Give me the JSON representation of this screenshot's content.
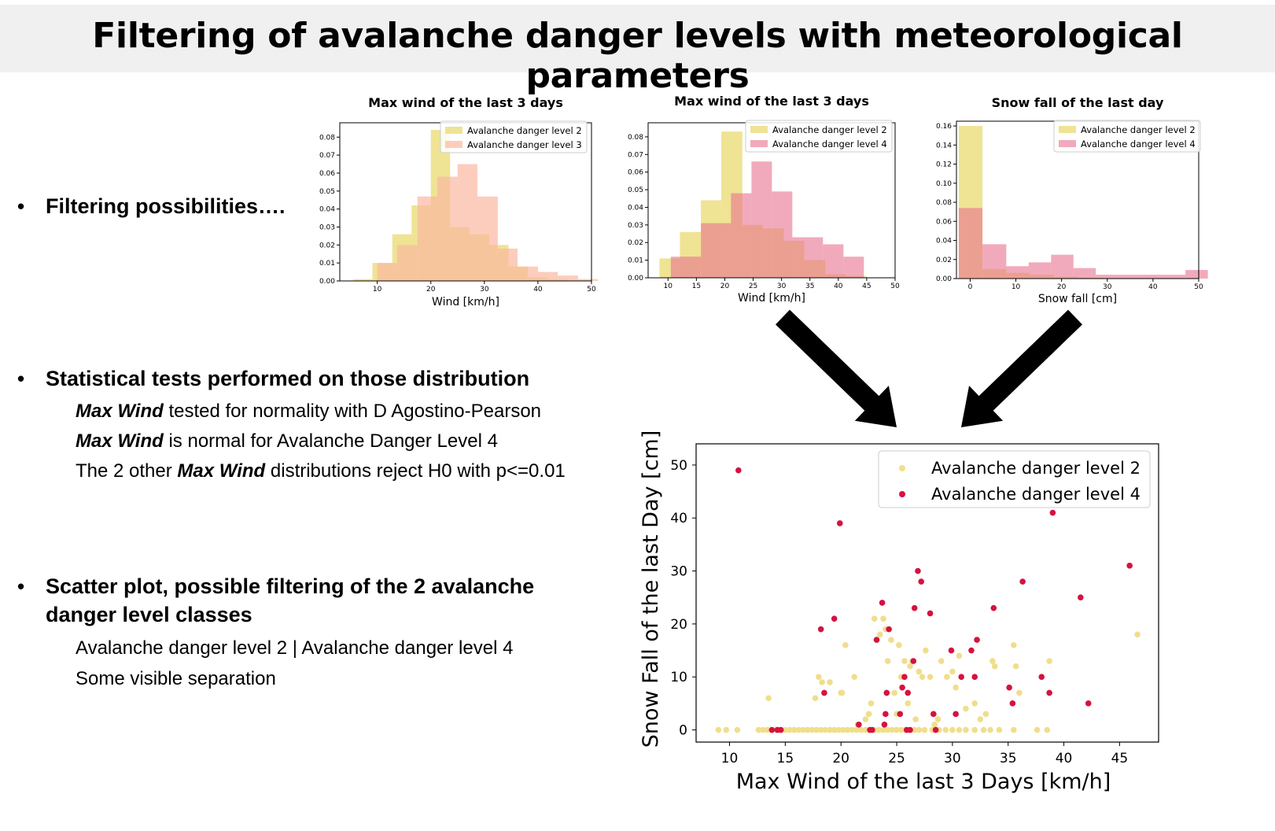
{
  "title": "Filtering of avalanche danger levels with meteorological parameters",
  "bullets": [
    {
      "text": "Filtering possibilities…."
    },
    {
      "text": "Statistical tests performed on those distribution"
    },
    {
      "text": "Scatter plot, possible filtering of the 2 avalanche",
      "text2": "danger level classes"
    }
  ],
  "notes": {
    "line1_bold": "Max Wind",
    "line1_rest": " tested for normality with D Agostino-Pearson",
    "line2_bold": "Max Wind",
    "line2_rest": " is normal for Avalanche Danger Level 4",
    "line3_pre": "The 2 other ",
    "line3_bold": "Max Wind",
    "line3_rest": " distributions reject H0 with p<=0.01",
    "line4": "Avalanche danger level 2  | Avalanche danger level 4",
    "line5": "Some visible separation"
  },
  "colors": {
    "level2": "#e8d766",
    "level3": "#fbb8a0",
    "level4": "#e8718d",
    "scatter_level2": "#f0de8c",
    "scatter_level4": "#d6123f",
    "arrow": "#000000"
  },
  "chart_data": [
    {
      "type": "histogram",
      "title": "Max wind of the last 3 days",
      "xlabel": "Wind [km/h]",
      "xlim": [
        3,
        50
      ],
      "ylim": [
        0,
        0.088
      ],
      "xticks": [
        10,
        20,
        30,
        40,
        50
      ],
      "yticks": [
        0.0,
        0.01,
        0.02,
        0.03,
        0.04,
        0.05,
        0.06,
        0.07,
        0.08
      ],
      "legend_position": "top-right",
      "series": [
        {
          "name": "Avalanche danger level 2",
          "bins": [
            [
              5.5,
              9.1,
              0.001
            ],
            [
              9.1,
              12.8,
              0.01
            ],
            [
              12.8,
              16.4,
              0.026
            ],
            [
              16.4,
              20.0,
              0.042
            ],
            [
              20.0,
              23.6,
              0.084
            ],
            [
              23.6,
              27.2,
              0.03
            ],
            [
              27.2,
              30.9,
              0.026
            ],
            [
              30.9,
              34.5,
              0.02
            ],
            [
              34.5,
              38.1,
              0.008
            ],
            [
              38.1,
              41.8,
              0.002
            ],
            [
              41.8,
              45.4,
              0.001
            ]
          ]
        },
        {
          "name": "Avalanche danger level 3",
          "bins": [
            [
              10.0,
              13.7,
              0.01
            ],
            [
              13.7,
              17.5,
              0.02
            ],
            [
              17.5,
              21.2,
              0.047
            ],
            [
              21.2,
              25.0,
              0.058
            ],
            [
              25.0,
              28.7,
              0.065
            ],
            [
              28.7,
              32.5,
              0.047
            ],
            [
              32.5,
              36.2,
              0.018
            ],
            [
              36.2,
              40.0,
              0.008
            ],
            [
              40.0,
              43.7,
              0.005
            ],
            [
              43.7,
              47.5,
              0.003
            ],
            [
              47.5,
              51.2,
              0.001
            ]
          ]
        }
      ]
    },
    {
      "type": "histogram",
      "title": "Max wind of the last 3 days",
      "xlabel": "Wind [km/h]",
      "xlim": [
        6.5,
        50
      ],
      "ylim": [
        0,
        0.088
      ],
      "xticks": [
        10,
        15,
        20,
        25,
        30,
        35,
        40,
        45,
        50
      ],
      "yticks": [
        0.0,
        0.01,
        0.02,
        0.03,
        0.04,
        0.05,
        0.06,
        0.07,
        0.08
      ],
      "legend_position": "top-right",
      "series": [
        {
          "name": "Avalanche danger level 2",
          "bins": [
            [
              8.5,
              12.1,
              0.011
            ],
            [
              12.1,
              15.8,
              0.026
            ],
            [
              15.8,
              19.4,
              0.044
            ],
            [
              19.4,
              23.1,
              0.083
            ],
            [
              23.1,
              26.7,
              0.03
            ],
            [
              26.7,
              30.4,
              0.028
            ],
            [
              30.4,
              34.0,
              0.021
            ],
            [
              34.0,
              37.7,
              0.01
            ],
            [
              37.7,
              41.3,
              0.002
            ],
            [
              41.3,
              45.0,
              0.001
            ]
          ]
        },
        {
          "name": "Avalanche danger level 4",
          "bins": [
            [
              10.5,
              15.8,
              0.012
            ],
            [
              15.8,
              21.1,
              0.031
            ],
            [
              21.1,
              24.7,
              0.048
            ],
            [
              24.7,
              28.3,
              0.066
            ],
            [
              28.3,
              31.9,
              0.049
            ],
            [
              31.9,
              37.3,
              0.023
            ],
            [
              37.3,
              40.9,
              0.019
            ],
            [
              40.9,
              44.5,
              0.012
            ]
          ]
        }
      ]
    },
    {
      "type": "histogram",
      "title": "Snow fall of the last day",
      "xlabel": "Snow fall [cm]",
      "xlim": [
        -3,
        50
      ],
      "ylim": [
        0,
        0.165
      ],
      "xticks": [
        0,
        10,
        20,
        30,
        40,
        50
      ],
      "yticks": [
        0.0,
        0.02,
        0.04,
        0.06,
        0.08,
        0.1,
        0.12,
        0.14,
        0.16
      ],
      "legend_position": "top-right",
      "series": [
        {
          "name": "Avalanche danger level 2",
          "bins": [
            [
              -2.5,
              2.7,
              0.16
            ],
            [
              2.7,
              7.9,
              0.01
            ],
            [
              7.9,
              13.1,
              0.006
            ],
            [
              13.1,
              18.3,
              0.004
            ],
            [
              18.3,
              23.5,
              0.002
            ],
            [
              23.5,
              28.7,
              0.001
            ]
          ]
        },
        {
          "name": "Avalanche danger level 4",
          "bins": [
            [
              -2.5,
              2.7,
              0.074
            ],
            [
              2.7,
              7.9,
              0.036
            ],
            [
              7.9,
              12.8,
              0.013
            ],
            [
              12.8,
              17.7,
              0.017
            ],
            [
              17.7,
              22.6,
              0.025
            ],
            [
              22.6,
              27.5,
              0.011
            ],
            [
              27.5,
              32.4,
              0.004
            ],
            [
              32.4,
              37.3,
              0.004
            ],
            [
              37.3,
              42.2,
              0.004
            ],
            [
              42.2,
              47.1,
              0.004
            ],
            [
              47.1,
              52.0,
              0.009
            ]
          ]
        }
      ]
    },
    {
      "type": "scatter",
      "xlabel": "Max Wind of the last 3 Days [km/h]",
      "ylabel": "Snow Fall of the last Day [cm]",
      "xlim": [
        7,
        48.5
      ],
      "ylim": [
        -2.3,
        54
      ],
      "xticks": [
        10,
        15,
        20,
        25,
        30,
        35,
        40,
        45
      ],
      "yticks": [
        0,
        10,
        20,
        30,
        40,
        50
      ],
      "legend_position": "top-right",
      "series": [
        {
          "name": "Avalanche danger level 2",
          "points": [
            [
              9.0,
              0
            ],
            [
              9.7,
              0
            ],
            [
              10.7,
              0
            ],
            [
              12.6,
              0
            ],
            [
              13.0,
              0
            ],
            [
              13.4,
              0
            ],
            [
              13.8,
              0
            ],
            [
              14.2,
              0
            ],
            [
              14.6,
              0
            ],
            [
              15.0,
              0
            ],
            [
              15.4,
              0
            ],
            [
              15.8,
              0
            ],
            [
              16.2,
              0
            ],
            [
              16.6,
              0
            ],
            [
              17.0,
              0
            ],
            [
              17.4,
              0
            ],
            [
              17.8,
              0
            ],
            [
              18.2,
              0
            ],
            [
              18.6,
              0
            ],
            [
              19.0,
              0
            ],
            [
              19.4,
              0
            ],
            [
              19.8,
              0
            ],
            [
              20.2,
              0
            ],
            [
              20.6,
              0
            ],
            [
              21.0,
              0
            ],
            [
              21.4,
              0
            ],
            [
              21.8,
              0
            ],
            [
              22.2,
              0
            ],
            [
              22.6,
              0
            ],
            [
              23.0,
              0
            ],
            [
              23.4,
              0
            ],
            [
              23.8,
              0
            ],
            [
              24.2,
              0
            ],
            [
              24.6,
              0
            ],
            [
              25.0,
              0
            ],
            [
              25.4,
              0
            ],
            [
              25.8,
              0
            ],
            [
              26.2,
              0
            ],
            [
              26.6,
              0
            ],
            [
              27.0,
              0
            ],
            [
              27.5,
              0
            ],
            [
              28.2,
              0
            ],
            [
              28.8,
              0
            ],
            [
              29.4,
              0
            ],
            [
              30.0,
              0
            ],
            [
              30.6,
              0
            ],
            [
              31.2,
              0
            ],
            [
              32.0,
              0
            ],
            [
              32.8,
              0
            ],
            [
              33.4,
              0
            ],
            [
              34.2,
              0
            ],
            [
              35.5,
              0
            ],
            [
              37.6,
              0
            ],
            [
              38.5,
              0
            ],
            [
              13.5,
              6
            ],
            [
              17.7,
              6
            ],
            [
              18.0,
              10
            ],
            [
              18.3,
              9
            ],
            [
              19.0,
              9
            ],
            [
              20.0,
              7
            ],
            [
              20.1,
              7
            ],
            [
              20.4,
              16
            ],
            [
              21.2,
              10
            ],
            [
              21.5,
              1
            ],
            [
              22.2,
              2
            ],
            [
              22.5,
              3
            ],
            [
              22.7,
              5
            ],
            [
              23.0,
              21
            ],
            [
              23.2,
              17
            ],
            [
              23.5,
              18
            ],
            [
              23.8,
              21
            ],
            [
              24.0,
              19
            ],
            [
              24.2,
              13
            ],
            [
              24.5,
              17
            ],
            [
              24.8,
              7
            ],
            [
              25.0,
              3
            ],
            [
              25.2,
              16
            ],
            [
              25.4,
              10
            ],
            [
              25.7,
              13
            ],
            [
              26.0,
              5
            ],
            [
              26.2,
              12
            ],
            [
              26.4,
              13
            ],
            [
              26.7,
              2
            ],
            [
              27.0,
              11
            ],
            [
              27.3,
              10
            ],
            [
              27.6,
              15
            ],
            [
              28.0,
              10
            ],
            [
              28.4,
              1
            ],
            [
              28.7,
              2
            ],
            [
              29.0,
              13
            ],
            [
              29.5,
              10
            ],
            [
              30.0,
              11
            ],
            [
              30.3,
              8
            ],
            [
              30.6,
              14
            ],
            [
              31.2,
              4
            ],
            [
              32.0,
              5
            ],
            [
              32.5,
              2
            ],
            [
              33.0,
              3
            ],
            [
              33.6,
              13
            ],
            [
              33.8,
              12
            ],
            [
              35.5,
              16
            ],
            [
              35.7,
              12
            ],
            [
              36.0,
              7
            ],
            [
              38.7,
              13
            ],
            [
              46.6,
              18
            ]
          ]
        },
        {
          "name": "Avalanche danger level 4",
          "points": [
            [
              10.8,
              49
            ],
            [
              13.8,
              0
            ],
            [
              14.3,
              0
            ],
            [
              14.6,
              0
            ],
            [
              18.2,
              19
            ],
            [
              18.5,
              7
            ],
            [
              19.4,
              21
            ],
            [
              19.9,
              39
            ],
            [
              21.6,
              1
            ],
            [
              22.6,
              0
            ],
            [
              22.8,
              0
            ],
            [
              23.2,
              17
            ],
            [
              23.7,
              24
            ],
            [
              23.9,
              1
            ],
            [
              24.0,
              3
            ],
            [
              24.1,
              7
            ],
            [
              24.3,
              19
            ],
            [
              25.3,
              3
            ],
            [
              25.5,
              8
            ],
            [
              25.7,
              10
            ],
            [
              25.9,
              0
            ],
            [
              26.0,
              7
            ],
            [
              26.2,
              0
            ],
            [
              26.5,
              13
            ],
            [
              26.6,
              23
            ],
            [
              26.9,
              30
            ],
            [
              27.2,
              28
            ],
            [
              28.0,
              22
            ],
            [
              28.3,
              3
            ],
            [
              28.5,
              0
            ],
            [
              29.9,
              15
            ],
            [
              30.3,
              3
            ],
            [
              30.8,
              10
            ],
            [
              31.7,
              15
            ],
            [
              32.0,
              10
            ],
            [
              32.2,
              17
            ],
            [
              33.7,
              23
            ],
            [
              35.1,
              8
            ],
            [
              35.4,
              5
            ],
            [
              36.3,
              28
            ],
            [
              38.0,
              10
            ],
            [
              38.7,
              7
            ],
            [
              39.0,
              41
            ],
            [
              41.5,
              25
            ],
            [
              42.2,
              5
            ],
            [
              45.9,
              31
            ]
          ]
        }
      ]
    }
  ]
}
